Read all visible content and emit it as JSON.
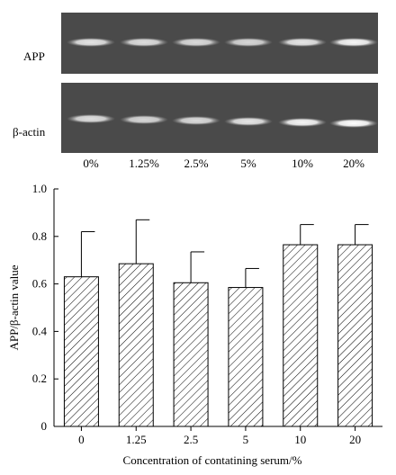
{
  "gel": {
    "rows": [
      {
        "label": "APP",
        "intensity": [
          0.85,
          0.82,
          0.8,
          0.78,
          0.86,
          0.95
        ]
      },
      {
        "label": "β-actin",
        "intensity": [
          0.82,
          0.78,
          0.8,
          0.86,
          0.95,
          1.0
        ]
      }
    ],
    "lanes": [
      "0%",
      "1.25%",
      "2.5%",
      "5%",
      "10%",
      "20%"
    ]
  },
  "chart_data": {
    "type": "bar",
    "categories": [
      "0",
      "1.25",
      "2.5",
      "5",
      "10",
      "20"
    ],
    "values": [
      0.63,
      0.685,
      0.605,
      0.585,
      0.765,
      0.765
    ],
    "errors": [
      0.19,
      0.185,
      0.13,
      0.08,
      0.085,
      0.085
    ],
    "title": "",
    "xlabel": "Concentration of contatining serum/%",
    "ylabel": "APP/β-actin value",
    "ylim": [
      0,
      1.0
    ],
    "yticks": [
      "0",
      "0.2",
      "0.4",
      "0.6",
      "0.8",
      "1.0"
    ],
    "grid": false,
    "bar_fill": "diagonal-hatch"
  }
}
